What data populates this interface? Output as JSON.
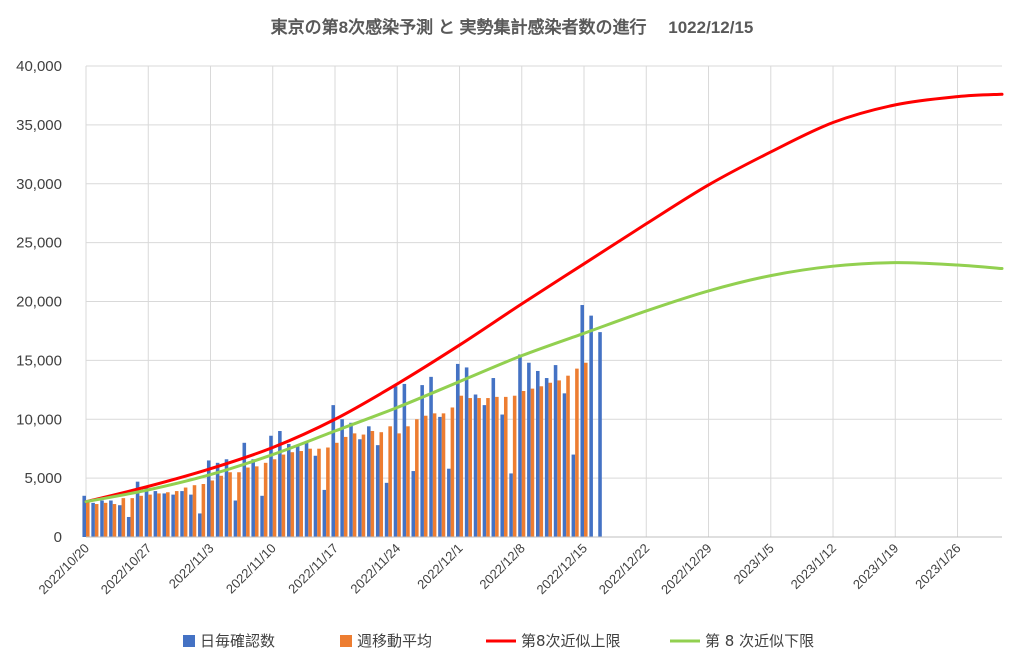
{
  "chart_data": {
    "type": "bar",
    "title": "東京の第8次感染予測 と 実勢集計感染者数の進行　 1022/12/15",
    "xlabel": "",
    "ylabel": "",
    "ylim": [
      0,
      40000
    ],
    "y_ticks": [
      "0",
      "5,000",
      "10,000",
      "15,000",
      "20,000",
      "25,000",
      "30,000",
      "35,000",
      "40,000"
    ],
    "x_tick_labels": [
      "2022/10/20",
      "2022/10/27",
      "2022/11/3",
      "2022/11/10",
      "2022/11/17",
      "2022/11/24",
      "2022/12/1",
      "2022/12/8",
      "2022/12/15",
      "2022/12/22",
      "2022/12/29",
      "2023/1/5",
      "2023/1/12",
      "2023/1/19",
      "2023/1/26"
    ],
    "x_start": "2022/10/20",
    "x_end": "2023/1/31",
    "grid": true,
    "legend_position": "bottom",
    "series": [
      {
        "name": "日毎確認数",
        "kind": "bar",
        "color": "#4472c4",
        "start": "2022/10/20",
        "values": [
          3500,
          2900,
          3100,
          3100,
          2700,
          1700,
          4700,
          4300,
          3900,
          3700,
          3600,
          3900,
          3600,
          2000,
          6500,
          6300,
          6600,
          3100,
          8000,
          6600,
          3500,
          8600,
          9000,
          7900,
          7800,
          8000,
          6900,
          4000,
          11200,
          10000,
          9700,
          8300,
          9400,
          7800,
          4600,
          12800,
          13000,
          5600,
          12900,
          13600,
          10200,
          5800,
          14700,
          14400,
          12100,
          11200,
          13500,
          10400,
          5400,
          15500,
          14800,
          14100,
          13500,
          14600,
          12200,
          7000,
          19700,
          18800,
          17400
        ]
      },
      {
        "name": "週移動平均",
        "kind": "bar",
        "color": "#ed7d31",
        "start": "2022/10/20",
        "values": [
          3000,
          2800,
          2900,
          2800,
          3300,
          3300,
          3500,
          3600,
          3700,
          3800,
          3900,
          4200,
          4400,
          4500,
          4800,
          5200,
          5500,
          5500,
          5900,
          6000,
          6300,
          6600,
          7000,
          7200,
          7300,
          7500,
          7500,
          7600,
          8000,
          8500,
          8800,
          8700,
          9000,
          8900,
          9400,
          8800,
          9400,
          10000,
          10300,
          10500,
          10500,
          11000,
          12000,
          11800,
          11800,
          11800,
          11900,
          11900,
          12000,
          12400,
          12600,
          12800,
          13100,
          13300,
          13700,
          14300,
          14800
        ]
      },
      {
        "name": "第8次近似上限",
        "kind": "line",
        "color": "#ff0000",
        "points": [
          [
            "2022/10/20",
            3000
          ],
          [
            "2022/10/27",
            4300
          ],
          [
            "2022/11/3",
            5800
          ],
          [
            "2022/11/10",
            7600
          ],
          [
            "2022/11/17",
            10000
          ],
          [
            "2022/11/24",
            13000
          ],
          [
            "2022/12/1",
            16300
          ],
          [
            "2022/12/8",
            19800
          ],
          [
            "2022/12/15",
            23200
          ],
          [
            "2022/12/22",
            26600
          ],
          [
            "2022/12/29",
            29900
          ],
          [
            "2023/1/5",
            32700
          ],
          [
            "2023/1/12",
            35200
          ],
          [
            "2023/1/19",
            36700
          ],
          [
            "2023/1/26",
            37400
          ],
          [
            "2023/1/31",
            37600
          ]
        ]
      },
      {
        "name": "第 8 次近似下限",
        "kind": "line",
        "color": "#92d050",
        "points": [
          [
            "2022/10/20",
            3000
          ],
          [
            "2022/10/27",
            4000
          ],
          [
            "2022/11/3",
            5300
          ],
          [
            "2022/11/10",
            7000
          ],
          [
            "2022/11/17",
            9000
          ],
          [
            "2022/11/24",
            11000
          ],
          [
            "2022/12/1",
            13200
          ],
          [
            "2022/12/8",
            15400
          ],
          [
            "2022/12/15",
            17300
          ],
          [
            "2022/12/22",
            19200
          ],
          [
            "2022/12/29",
            20900
          ],
          [
            "2023/1/5",
            22200
          ],
          [
            "2023/1/12",
            23000
          ],
          [
            "2023/1/19",
            23300
          ],
          [
            "2023/1/26",
            23100
          ],
          [
            "2023/1/31",
            22800
          ]
        ]
      }
    ]
  }
}
